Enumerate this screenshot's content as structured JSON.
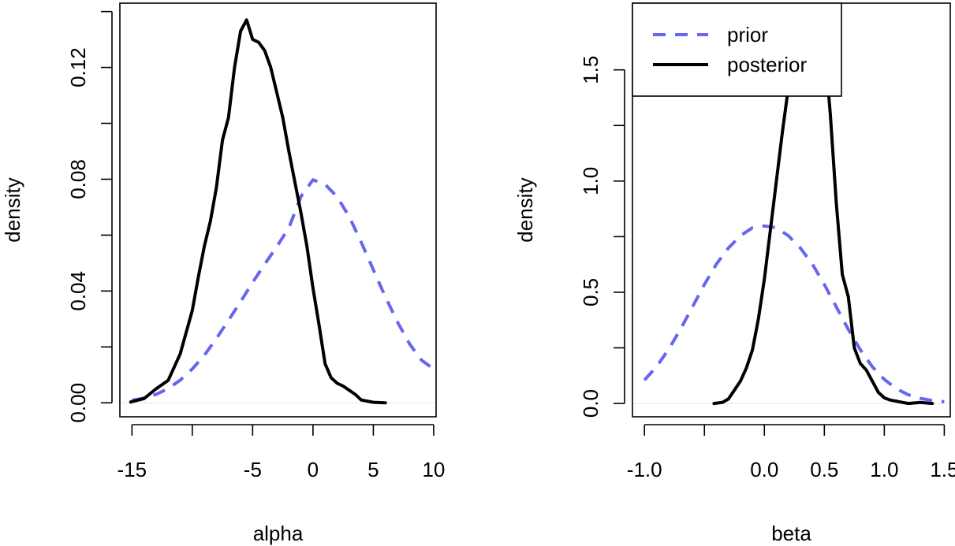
{
  "colors": {
    "prior": "#6666ee",
    "posterior": "#000000",
    "baseline": "#e6e6e6"
  },
  "chart_data": [
    {
      "type": "line",
      "id": "alpha",
      "xlabel": "alpha",
      "ylabel": "density",
      "xlim": [
        -16,
        10.2
      ],
      "ylim": [
        -0.005,
        0.143
      ],
      "xticks": [
        -15,
        -10,
        -5,
        0,
        5,
        10
      ],
      "xtick_labels": [
        "-15",
        "",
        "-5",
        "0",
        "5",
        "10"
      ],
      "yticks": [
        0.0,
        0.02,
        0.04,
        0.06,
        0.08,
        0.1,
        0.12,
        0.14
      ],
      "ytick_labels": [
        "0.00",
        "",
        "0.04",
        "",
        "0.08",
        "",
        "0.12",
        ""
      ],
      "series": [
        {
          "key": "prior",
          "style": "dashed",
          "x": [
            -15,
            -14,
            -13,
            -12,
            -11,
            -10,
            -9,
            -8,
            -7,
            -6,
            -5,
            -4,
            -3,
            -2,
            -1,
            0,
            1,
            2,
            3,
            4,
            5,
            6,
            7,
            8,
            9,
            10
          ],
          "y": [
            0.0009,
            0.0017,
            0.003,
            0.0051,
            0.0081,
            0.0121,
            0.017,
            0.023,
            0.0295,
            0.0362,
            0.0431,
            0.0496,
            0.0559,
            0.0626,
            0.0738,
            0.0798,
            0.0782,
            0.0737,
            0.0666,
            0.0574,
            0.0476,
            0.0379,
            0.0289,
            0.0211,
            0.0152,
            0.0121
          ]
        },
        {
          "key": "posterior",
          "style": "solid",
          "x": [
            -15.1,
            -14,
            -13,
            -12,
            -11,
            -10,
            -9.5,
            -9,
            -8.5,
            -8,
            -7.5,
            -7,
            -6.5,
            -6,
            -5.5,
            -5,
            -4.5,
            -4,
            -3.5,
            -3,
            -2.5,
            -2,
            -1.5,
            -1,
            -0.5,
            0,
            0.5,
            1,
            1.5,
            2,
            2.5,
            3,
            3.5,
            4,
            5,
            6
          ],
          "y": [
            0.0003,
            0.0015,
            0.005,
            0.008,
            0.0175,
            0.033,
            0.045,
            0.056,
            0.065,
            0.077,
            0.094,
            0.102,
            0.12,
            0.133,
            0.137,
            0.13,
            0.129,
            0.126,
            0.12,
            0.111,
            0.102,
            0.09,
            0.079,
            0.068,
            0.056,
            0.041,
            0.028,
            0.014,
            0.009,
            0.007,
            0.006,
            0.0045,
            0.003,
            0.001,
            0.0002,
            0.0
          ]
        }
      ]
    },
    {
      "type": "line",
      "id": "beta",
      "xlabel": "beta",
      "ylabel": "density",
      "xlim": [
        -1.1,
        1.55
      ],
      "ylim": [
        -0.06,
        1.8
      ],
      "xticks": [
        -1.0,
        -0.5,
        0.0,
        0.5,
        1.0,
        1.5
      ],
      "xtick_labels": [
        "-1.0",
        "",
        "0.0",
        "0.5",
        "1.0",
        "1.5"
      ],
      "yticks": [
        0.0,
        0.25,
        0.5,
        0.75,
        1.0,
        1.25,
        1.5
      ],
      "ytick_labels": [
        "0.0",
        "",
        "0.5",
        "",
        "1.0",
        "",
        "1.5"
      ],
      "series": [
        {
          "key": "prior",
          "style": "dashed",
          "x": [
            -1.0,
            -0.9,
            -0.8,
            -0.7,
            -0.6,
            -0.5,
            -0.4,
            -0.3,
            -0.2,
            -0.1,
            0.0,
            0.1,
            0.2,
            0.3,
            0.4,
            0.5,
            0.6,
            0.7,
            0.8,
            0.9,
            1.0,
            1.1,
            1.2,
            1.3,
            1.4,
            1.5
          ],
          "y": [
            0.105,
            0.165,
            0.242,
            0.333,
            0.434,
            0.535,
            0.627,
            0.699,
            0.754,
            0.79,
            0.798,
            0.79,
            0.754,
            0.699,
            0.627,
            0.535,
            0.434,
            0.333,
            0.242,
            0.165,
            0.108,
            0.066,
            0.039,
            0.023,
            0.013,
            0.008
          ]
        },
        {
          "key": "posterior",
          "style": "solid",
          "x": [
            -0.42,
            -0.35,
            -0.3,
            -0.25,
            -0.2,
            -0.15,
            -0.1,
            -0.05,
            0.0,
            0.05,
            0.1,
            0.15,
            0.2,
            0.25,
            0.3,
            0.35,
            0.4,
            0.45,
            0.5,
            0.55,
            0.6,
            0.65,
            0.7,
            0.75,
            0.8,
            0.85,
            0.9,
            0.95,
            1.0,
            1.05,
            1.1,
            1.15,
            1.2,
            1.3,
            1.4
          ],
          "y": [
            0.0,
            0.005,
            0.02,
            0.06,
            0.1,
            0.16,
            0.24,
            0.38,
            0.56,
            0.78,
            1.0,
            1.22,
            1.42,
            1.62,
            1.72,
            1.76,
            1.76,
            1.72,
            1.62,
            1.3,
            0.9,
            0.58,
            0.48,
            0.25,
            0.18,
            0.15,
            0.1,
            0.05,
            0.025,
            0.015,
            0.01,
            0.005,
            0.0,
            0.005,
            0.0
          ]
        }
      ]
    }
  ],
  "legend": {
    "placement": "top-left",
    "entries": [
      {
        "key": "prior",
        "label": "prior",
        "style": "dashed"
      },
      {
        "key": "posterior",
        "label": "posterior",
        "style": "solid"
      }
    ]
  }
}
